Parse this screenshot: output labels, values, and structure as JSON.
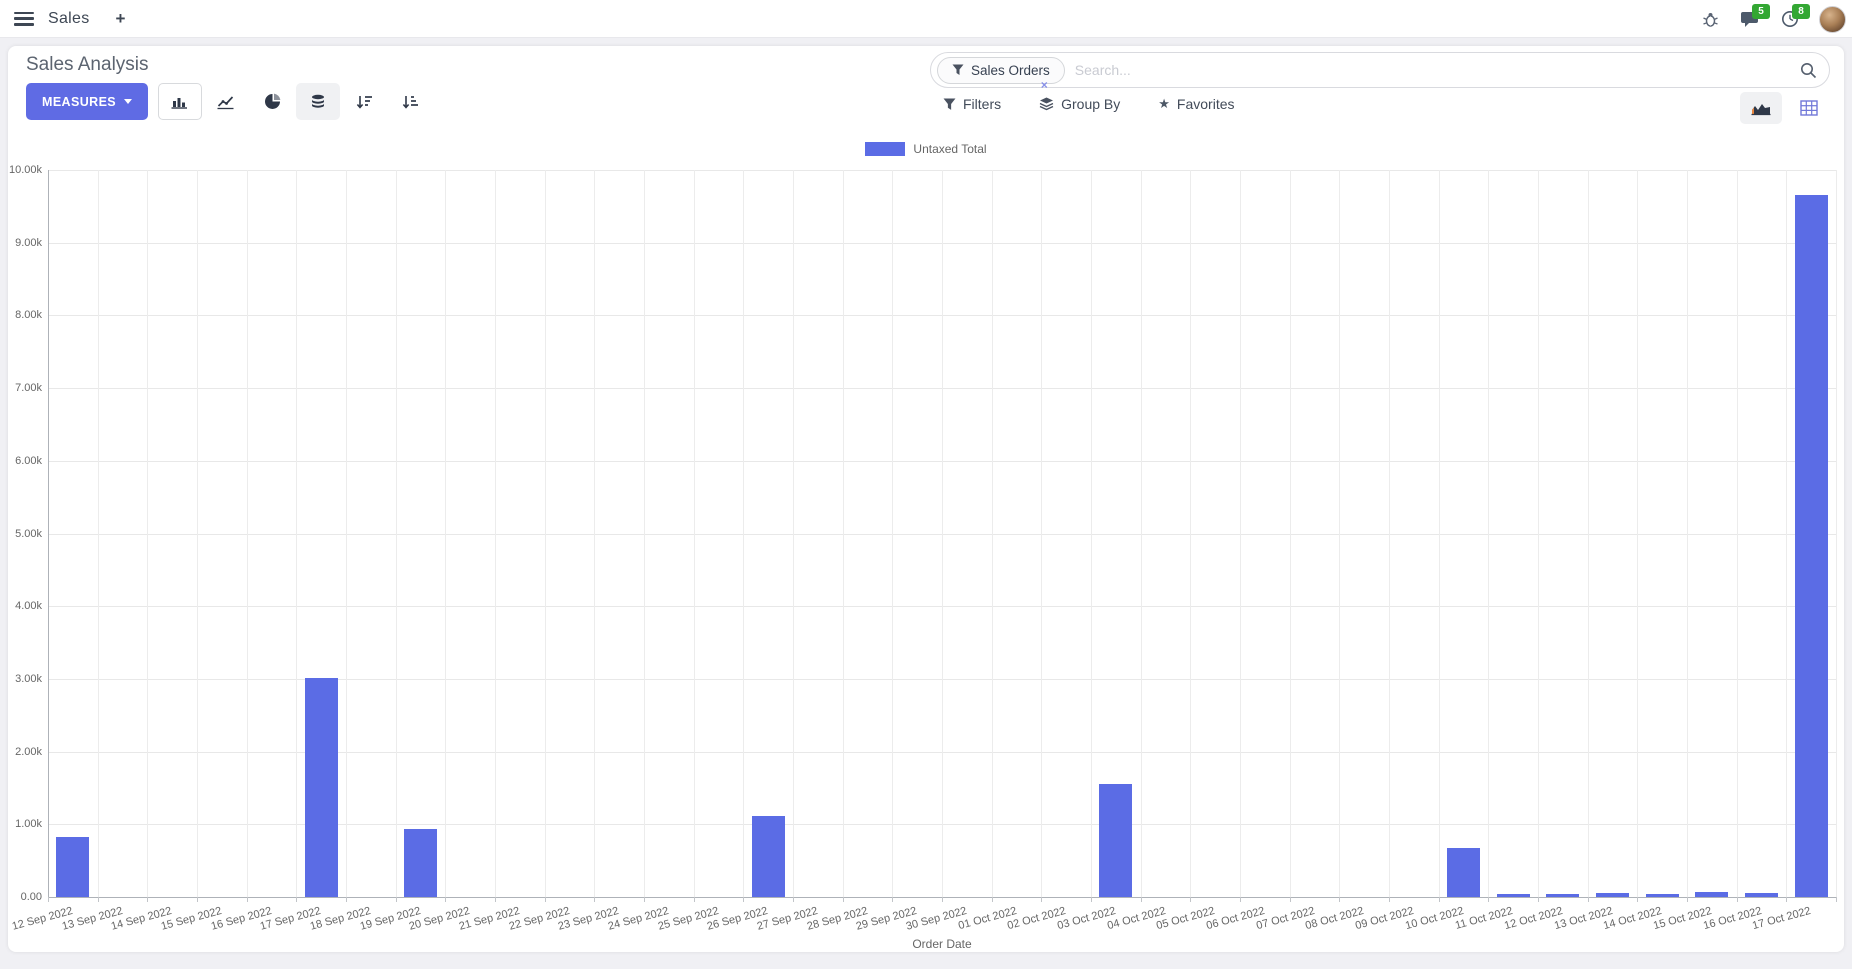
{
  "navbar": {
    "app_name": "Sales",
    "plus_label": "+",
    "chat_badge": "5",
    "activity_badge": "8"
  },
  "control_panel": {
    "title": "Sales Analysis",
    "measures_label": "MEASURES",
    "filters_label": "Filters",
    "group_by_label": "Group By",
    "favorites_label": "Favorites",
    "star_glyph": "★",
    "search": {
      "facet_label": "Sales Orders",
      "facet_remove": "×",
      "placeholder": "Search..."
    }
  },
  "chart_data": {
    "type": "bar",
    "title": "",
    "legend_position": "top",
    "xlabel": "Order Date",
    "ylabel": "",
    "ylim": [
      0,
      10000
    ],
    "grid": true,
    "y_ticks": [
      "0.00",
      "1.00k",
      "2.00k",
      "3.00k",
      "4.00k",
      "5.00k",
      "6.00k",
      "7.00k",
      "8.00k",
      "9.00k",
      "10.00k"
    ],
    "categories": [
      "12 Sep 2022",
      "13 Sep 2022",
      "14 Sep 2022",
      "15 Sep 2022",
      "16 Sep 2022",
      "17 Sep 2022",
      "18 Sep 2022",
      "19 Sep 2022",
      "20 Sep 2022",
      "21 Sep 2022",
      "22 Sep 2022",
      "23 Sep 2022",
      "24 Sep 2022",
      "25 Sep 2022",
      "26 Sep 2022",
      "27 Sep 2022",
      "28 Sep 2022",
      "29 Sep 2022",
      "30 Sep 2022",
      "01 Oct 2022",
      "02 Oct 2022",
      "03 Oct 2022",
      "04 Oct 2022",
      "05 Oct 2022",
      "06 Oct 2022",
      "07 Oct 2022",
      "08 Oct 2022",
      "09 Oct 2022",
      "10 Oct 2022",
      "11 Oct 2022",
      "12 Oct 2022",
      "13 Oct 2022",
      "14 Oct 2022",
      "15 Oct 2022",
      "16 Oct 2022",
      "17 Oct 2022"
    ],
    "series": [
      {
        "name": "Untaxed Total",
        "color": "#5B6CE5",
        "values": [
          820,
          0,
          0,
          0,
          0,
          3010,
          0,
          930,
          0,
          0,
          0,
          0,
          0,
          0,
          1110,
          0,
          0,
          0,
          0,
          0,
          0,
          1560,
          0,
          0,
          0,
          0,
          0,
          0,
          670,
          40,
          40,
          55,
          40,
          70,
          55,
          9650
        ]
      }
    ]
  },
  "colors": {
    "accent": "#5F6BE4",
    "bar": "#5B6CE5",
    "badge_green": "#33A733",
    "page_bg": "#F0F0F4"
  }
}
